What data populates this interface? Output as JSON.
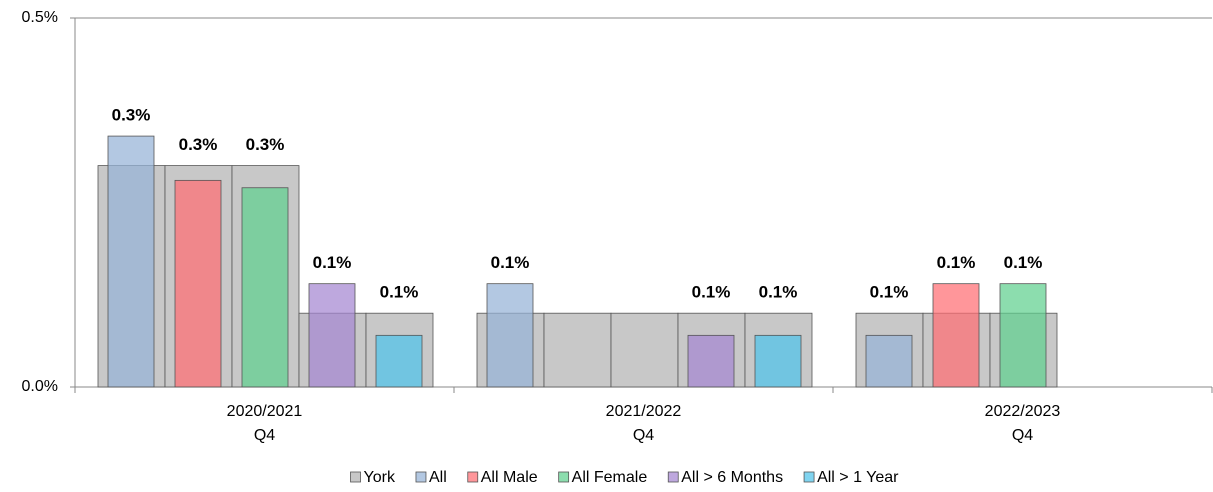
{
  "chart_data": {
    "type": "bar",
    "categories": [
      [
        "2020/2021",
        "Q4"
      ],
      [
        "2021/2022",
        "Q4"
      ],
      [
        "2022/2023",
        "Q4"
      ]
    ],
    "series": [
      {
        "name": "York",
        "color": "#c8c8c8",
        "values": [
          [
            0.3,
            0.3,
            0.3,
            0.1,
            0.1
          ],
          [
            0.1,
            0.1,
            0.1,
            0.1,
            0.1
          ],
          [
            0.1,
            0.1,
            0.1,
            null,
            null
          ]
        ]
      },
      {
        "name": "All",
        "color": "#95b3d7",
        "values": [
          0.34,
          0.14,
          0.07
        ],
        "value_labels": [
          "0.3%",
          "0.1%",
          "0.1%"
        ]
      },
      {
        "name": "All Male",
        "color": "#ff6e73",
        "values": [
          0.28,
          null,
          0.14
        ],
        "value_labels": [
          "0.3%",
          null,
          "0.1%"
        ]
      },
      {
        "name": "All Female",
        "color": "#5fd08f",
        "values": [
          0.27,
          null,
          0.14
        ],
        "value_labels": [
          "0.3%",
          null,
          "0.1%"
        ]
      },
      {
        "name": "All > 6 Months",
        "color": "#a586d1",
        "values": [
          0.14,
          0.07,
          null
        ],
        "value_labels": [
          "0.1%",
          "0.1%",
          null
        ]
      },
      {
        "name": "All > 1 Year",
        "color": "#4fc3ea",
        "values": [
          0.07,
          0.07,
          null
        ],
        "value_labels": [
          "0.1%",
          "0.1%",
          null
        ]
      }
    ],
    "ylim": [
      0,
      0.5
    ],
    "yticks": [
      {
        "value": 0,
        "label": "0.0%"
      },
      {
        "value": 0.5,
        "label": "0.5%"
      }
    ],
    "grid": true
  }
}
